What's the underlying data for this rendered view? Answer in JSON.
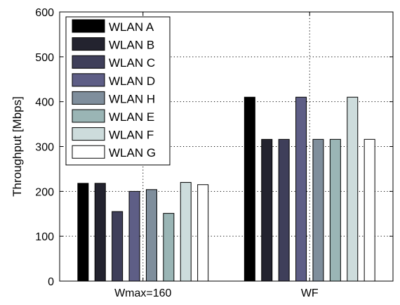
{
  "chart_data": {
    "type": "bar",
    "title": "",
    "xlabel": "",
    "ylabel": "Throughput [Mbps]",
    "ylim": [
      0,
      600
    ],
    "yticks": [
      0,
      100,
      200,
      300,
      400,
      500,
      600
    ],
    "grid": true,
    "legend_position": "top-left",
    "categories": [
      "Wmax=160",
      "WF"
    ],
    "series": [
      {
        "name": "WLAN A",
        "color": "#000000",
        "values": [
          218,
          410
        ]
      },
      {
        "name": "WLAN B",
        "color": "#23232f",
        "values": [
          218,
          316
        ]
      },
      {
        "name": "WLAN C",
        "color": "#3f3f5a",
        "values": [
          155,
          316
        ]
      },
      {
        "name": "WLAN D",
        "color": "#5e5e86",
        "values": [
          200,
          410
        ]
      },
      {
        "name": "WLAN H",
        "color": "#7f8e9c",
        "values": [
          204,
          316
        ]
      },
      {
        "name": "WLAN E",
        "color": "#9ab5b5",
        "values": [
          151,
          316
        ]
      },
      {
        "name": "WLAN F",
        "color": "#cddcdc",
        "values": [
          220,
          410
        ]
      },
      {
        "name": "WLAN G",
        "color": "#ffffff",
        "values": [
          215,
          316
        ]
      }
    ]
  }
}
